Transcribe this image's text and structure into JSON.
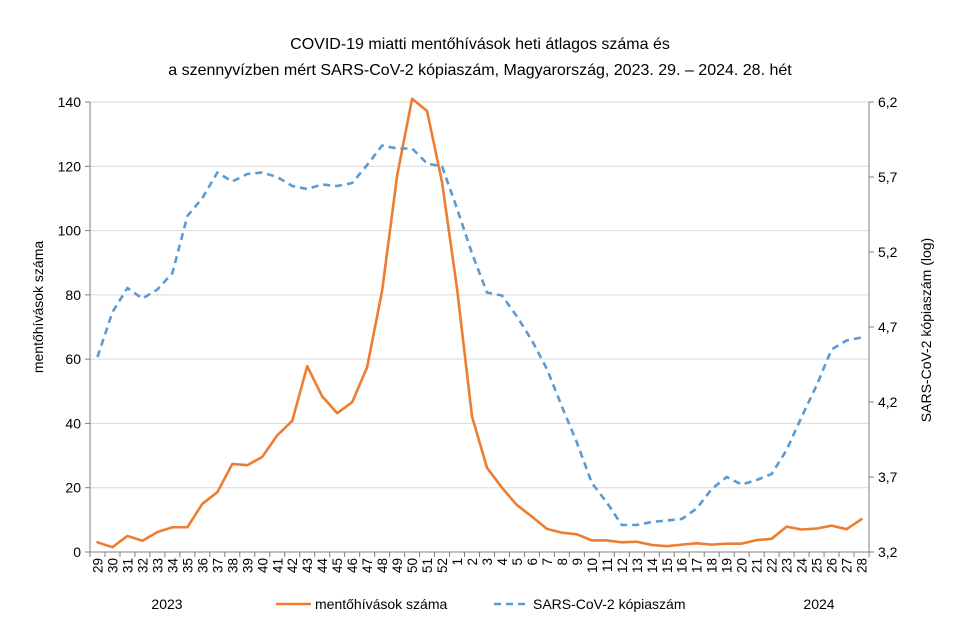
{
  "chart_data": {
    "type": "line",
    "title": [
      "COVID-19 miatti mentőhívások heti átlagos száma és",
      "a szennyvízben mért SARS-CoV-2 kópiaszám, Magyarország, 2023. 29. – 2024. 28. hét"
    ],
    "categories": [
      "29",
      "30",
      "31",
      "32",
      "33",
      "34",
      "35",
      "36",
      "37",
      "38",
      "39",
      "40",
      "41",
      "42",
      "43",
      "44",
      "45",
      "46",
      "47",
      "48",
      "49",
      "50",
      "51",
      "52",
      "1",
      "2",
      "3",
      "4",
      "5",
      "6",
      "7",
      "8",
      "9",
      "10",
      "11",
      "12",
      "13",
      "14",
      "15",
      "16",
      "17",
      "18",
      "19",
      "20",
      "21",
      "22",
      "23",
      "24",
      "25",
      "26",
      "27",
      "28"
    ],
    "year_labels": [
      "2023",
      "2024"
    ],
    "y_left": {
      "label": "mentőhívások száma",
      "range": [
        0,
        140
      ],
      "ticks": [
        "0",
        "20",
        "40",
        "60",
        "80",
        "100",
        "120",
        "140"
      ]
    },
    "y_right": {
      "label": "SARS-CoV-2 kópiaszám (log)",
      "range": [
        3.2,
        6.2
      ],
      "ticks": [
        "3,2",
        "3,7",
        "4,2",
        "4,7",
        "5,2",
        "5,7",
        "6,2"
      ]
    },
    "grid": true,
    "legend_position": "bottom",
    "series": [
      {
        "name": "mentőhívások száma",
        "axis": "left",
        "color": "#ED7D31",
        "style": "solid",
        "values": [
          3,
          1.5,
          5,
          3.5,
          6.2,
          7.7,
          7.7,
          15,
          18.6,
          27.4,
          27,
          29.6,
          36.3,
          40.8,
          57.8,
          48.4,
          43.2,
          46.6,
          57.5,
          81.3,
          117,
          141,
          137.2,
          115,
          82,
          42.2,
          26.2,
          20,
          14.6,
          11,
          7.2,
          6,
          5.5,
          3.6,
          3.6,
          3,
          3.2,
          2.2,
          1.8,
          2.3,
          2.7,
          2.3,
          2.6,
          2.6,
          3.7,
          4.1,
          7.9,
          7,
          7.3,
          8.2,
          7.1,
          10.2
        ]
      },
      {
        "name": "SARS-CoV-2 kópiaszám",
        "axis": "right",
        "color": "#5B9BD5",
        "style": "dashed",
        "values": [
          4.5,
          4.8,
          4.96,
          4.89,
          4.95,
          5.06,
          5.44,
          5.56,
          5.73,
          5.67,
          5.72,
          5.73,
          5.7,
          5.64,
          5.62,
          5.65,
          5.64,
          5.66,
          5.78,
          5.91,
          5.89,
          5.89,
          5.79,
          5.77,
          5.49,
          5.19,
          4.93,
          4.91,
          4.77,
          4.61,
          4.42,
          4.17,
          3.93,
          3.66,
          3.53,
          3.38,
          3.38,
          3.4,
          3.41,
          3.42,
          3.49,
          3.62,
          3.7,
          3.65,
          3.68,
          3.72,
          3.88,
          4.1,
          4.31,
          4.55,
          4.61,
          4.63
        ]
      }
    ]
  }
}
